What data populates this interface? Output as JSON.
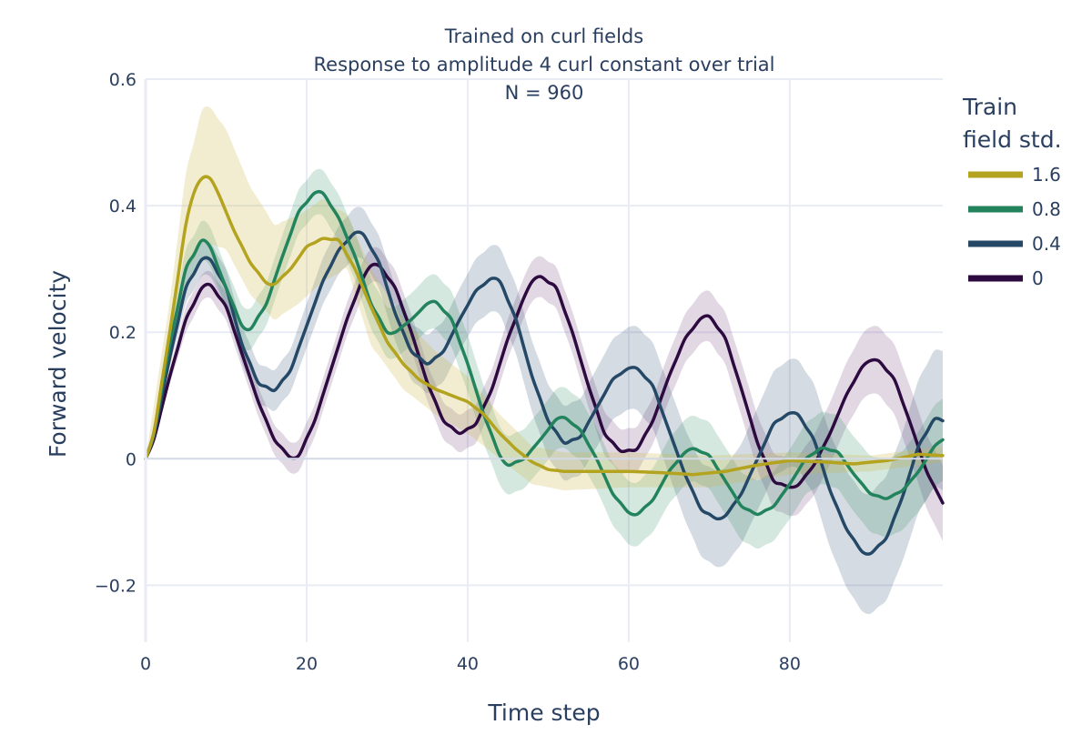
{
  "chart_data": {
    "type": "line",
    "title": "Trained on curl fields",
    "subtitle": "Response to amplitude 4 curl constant over trial",
    "annotation": "N = 960",
    "xlabel": "Time step",
    "ylabel": "Forward velocity",
    "xlim": [
      0,
      99
    ],
    "ylim": [
      -0.29,
      0.6
    ],
    "xticks": [
      0,
      20,
      40,
      60,
      80
    ],
    "xtick_labels": [
      "0",
      "20",
      "40",
      "60",
      "80"
    ],
    "yticks": [
      -0.2,
      0,
      0.2,
      0.4,
      0.6
    ],
    "ytick_labels": [
      "−0.2",
      "0",
      "0.2",
      "0.4",
      "0.6"
    ],
    "grid": true,
    "legend": {
      "title_lines": [
        "Train",
        "field std."
      ],
      "placement": "right",
      "entries": [
        "1.6",
        "0.8",
        "0.4",
        "0"
      ]
    },
    "series": [
      {
        "name": "1.6",
        "color": "#b3a31f",
        "band_color": "rgba(202,184,70,0.25)",
        "anchors": [
          [
            0,
            0
          ],
          [
            1,
            0.04
          ],
          [
            3,
            0.2
          ],
          [
            5,
            0.37
          ],
          [
            6,
            0.42
          ],
          [
            7,
            0.443
          ],
          [
            8,
            0.443
          ],
          [
            9,
            0.42
          ],
          [
            11,
            0.36
          ],
          [
            13,
            0.31
          ],
          [
            15,
            0.278
          ],
          [
            16,
            0.276
          ],
          [
            18,
            0.3
          ],
          [
            20,
            0.335
          ],
          [
            22,
            0.348
          ],
          [
            24,
            0.345
          ],
          [
            26,
            0.3
          ],
          [
            28,
            0.24
          ],
          [
            30,
            0.185
          ],
          [
            32,
            0.15
          ],
          [
            34,
            0.125
          ],
          [
            36,
            0.11
          ],
          [
            38,
            0.1
          ],
          [
            40,
            0.09
          ],
          [
            42,
            0.07
          ],
          [
            44,
            0.04
          ],
          [
            46,
            0.015
          ],
          [
            48,
            -0.005
          ],
          [
            50,
            -0.017
          ],
          [
            52,
            -0.02
          ],
          [
            56,
            -0.02
          ],
          [
            60,
            -0.02
          ],
          [
            64,
            -0.022
          ],
          [
            68,
            -0.025
          ],
          [
            72,
            -0.02
          ],
          [
            76,
            -0.01
          ],
          [
            80,
            -0.003
          ],
          [
            84,
            -0.005
          ],
          [
            88,
            -0.008
          ],
          [
            92,
            -0.003
          ],
          [
            96,
            0.007
          ],
          [
            99,
            0.005
          ]
        ],
        "band": [
          [
            0,
            0
          ],
          [
            3,
            0.25
          ],
          [
            5,
            0.45
          ],
          [
            7,
            0.55
          ],
          [
            8,
            0.555
          ],
          [
            10,
            0.52
          ],
          [
            13,
            0.43
          ],
          [
            16,
            0.37
          ],
          [
            19,
            0.385
          ],
          [
            22,
            0.41
          ],
          [
            25,
            0.385
          ],
          [
            28,
            0.3
          ],
          [
            32,
            0.22
          ],
          [
            36,
            0.17
          ],
          [
            40,
            0.13
          ],
          [
            44,
            0.07
          ],
          [
            48,
            0.02
          ],
          [
            52,
            0.01
          ],
          [
            60,
            0.01
          ],
          [
            70,
            0.005
          ],
          [
            80,
            0.01
          ],
          [
            90,
            0.005
          ],
          [
            99,
            0.02
          ]
        ],
        "band_lower": [
          [
            0,
            0
          ],
          [
            3,
            0.14
          ],
          [
            5,
            0.29
          ],
          [
            7,
            0.34
          ],
          [
            8,
            0.34
          ],
          [
            10,
            0.33
          ],
          [
            13,
            0.26
          ],
          [
            16,
            0.22
          ],
          [
            19,
            0.245
          ],
          [
            22,
            0.28
          ],
          [
            25,
            0.3
          ],
          [
            28,
            0.18
          ],
          [
            32,
            0.11
          ],
          [
            36,
            0.07
          ],
          [
            40,
            0.04
          ],
          [
            44,
            0.0
          ],
          [
            48,
            -0.04
          ],
          [
            52,
            -0.05
          ],
          [
            60,
            -0.045
          ],
          [
            70,
            -0.045
          ],
          [
            80,
            -0.025
          ],
          [
            90,
            -0.02
          ],
          [
            99,
            -0.005
          ]
        ]
      },
      {
        "name": "0.8",
        "color": "#23835d",
        "band_color": "rgba(42,140,96,0.2)",
        "anchors": [
          [
            0,
            0
          ],
          [
            1,
            0.04
          ],
          [
            3,
            0.18
          ],
          [
            5,
            0.3
          ],
          [
            7,
            0.345
          ],
          [
            8,
            0.335
          ],
          [
            10,
            0.27
          ],
          [
            12,
            0.21
          ],
          [
            13,
            0.205
          ],
          [
            15,
            0.245
          ],
          [
            17,
            0.32
          ],
          [
            19,
            0.39
          ],
          [
            21,
            0.42
          ],
          [
            22,
            0.42
          ],
          [
            24,
            0.38
          ],
          [
            26,
            0.32
          ],
          [
            28,
            0.245
          ],
          [
            30,
            0.2
          ],
          [
            31,
            0.2
          ],
          [
            33,
            0.22
          ],
          [
            35,
            0.245
          ],
          [
            36,
            0.248
          ],
          [
            38,
            0.22
          ],
          [
            40,
            0.15
          ],
          [
            42,
            0.07
          ],
          [
            44,
            0.005
          ],
          [
            45,
            -0.01
          ],
          [
            47,
            0.0
          ],
          [
            49,
            0.03
          ],
          [
            51,
            0.062
          ],
          [
            52,
            0.065
          ],
          [
            54,
            0.045
          ],
          [
            56,
            0.0
          ],
          [
            58,
            -0.055
          ],
          [
            60,
            -0.085
          ],
          [
            61,
            -0.088
          ],
          [
            63,
            -0.065
          ],
          [
            65,
            -0.02
          ],
          [
            67,
            0.01
          ],
          [
            68,
            0.016
          ],
          [
            70,
            0.005
          ],
          [
            72,
            -0.035
          ],
          [
            74,
            -0.075
          ],
          [
            76,
            -0.088
          ],
          [
            78,
            -0.075
          ],
          [
            80,
            -0.04
          ],
          [
            82,
            0.0
          ],
          [
            84,
            0.017
          ],
          [
            86,
            0.01
          ],
          [
            88,
            -0.025
          ],
          [
            90,
            -0.055
          ],
          [
            92,
            -0.063
          ],
          [
            94,
            -0.05
          ],
          [
            96,
            -0.02
          ],
          [
            98,
            0.02
          ],
          [
            99,
            0.03
          ]
        ],
        "band_halfwidth": [
          [
            0,
            0
          ],
          [
            5,
            0.03
          ],
          [
            20,
            0.035
          ],
          [
            40,
            0.045
          ],
          [
            60,
            0.05
          ],
          [
            80,
            0.055
          ],
          [
            99,
            0.065
          ]
        ]
      },
      {
        "name": "0.4",
        "color": "#244866",
        "band_color": "rgba(46,74,110,0.2)",
        "anchors": [
          [
            0,
            0
          ],
          [
            1,
            0.035
          ],
          [
            3,
            0.16
          ],
          [
            5,
            0.27
          ],
          [
            7,
            0.315
          ],
          [
            8,
            0.315
          ],
          [
            10,
            0.27
          ],
          [
            12,
            0.18
          ],
          [
            14,
            0.12
          ],
          [
            16,
            0.108
          ],
          [
            18,
            0.14
          ],
          [
            20,
            0.21
          ],
          [
            22,
            0.28
          ],
          [
            24,
            0.33
          ],
          [
            26,
            0.357
          ],
          [
            27,
            0.355
          ],
          [
            29,
            0.31
          ],
          [
            31,
            0.23
          ],
          [
            33,
            0.17
          ],
          [
            35,
            0.15
          ],
          [
            37,
            0.17
          ],
          [
            39,
            0.22
          ],
          [
            41,
            0.265
          ],
          [
            43,
            0.285
          ],
          [
            44,
            0.28
          ],
          [
            46,
            0.22
          ],
          [
            48,
            0.13
          ],
          [
            50,
            0.06
          ],
          [
            52,
            0.025
          ],
          [
            54,
            0.035
          ],
          [
            56,
            0.08
          ],
          [
            58,
            0.125
          ],
          [
            60,
            0.143
          ],
          [
            61,
            0.143
          ],
          [
            63,
            0.115
          ],
          [
            65,
            0.045
          ],
          [
            67,
            -0.025
          ],
          [
            69,
            -0.08
          ],
          [
            71,
            -0.095
          ],
          [
            72,
            -0.09
          ],
          [
            74,
            -0.055
          ],
          [
            76,
            0.0
          ],
          [
            78,
            0.055
          ],
          [
            80,
            0.072
          ],
          [
            81,
            0.07
          ],
          [
            83,
            0.03
          ],
          [
            85,
            -0.05
          ],
          [
            87,
            -0.11
          ],
          [
            89,
            -0.147
          ],
          [
            90,
            -0.15
          ],
          [
            92,
            -0.125
          ],
          [
            94,
            -0.06
          ],
          [
            96,
            0.02
          ],
          [
            98,
            0.063
          ],
          [
            99,
            0.06
          ]
        ],
        "band_halfwidth": [
          [
            0,
            0
          ],
          [
            5,
            0.025
          ],
          [
            20,
            0.035
          ],
          [
            40,
            0.05
          ],
          [
            60,
            0.065
          ],
          [
            80,
            0.085
          ],
          [
            90,
            0.095
          ],
          [
            99,
            0.11
          ]
        ]
      },
      {
        "name": "0",
        "color": "#2d0a3f",
        "band_color": "rgba(104,60,120,0.2)",
        "anchors": [
          [
            0,
            0
          ],
          [
            1,
            0.03
          ],
          [
            3,
            0.13
          ],
          [
            5,
            0.22
          ],
          [
            7,
            0.27
          ],
          [
            8,
            0.275
          ],
          [
            10,
            0.24
          ],
          [
            12,
            0.165
          ],
          [
            14,
            0.09
          ],
          [
            16,
            0.03
          ],
          [
            18,
            0.002
          ],
          [
            19,
            0.005
          ],
          [
            21,
            0.06
          ],
          [
            23,
            0.14
          ],
          [
            25,
            0.22
          ],
          [
            27,
            0.285
          ],
          [
            28,
            0.305
          ],
          [
            29,
            0.305
          ],
          [
            31,
            0.27
          ],
          [
            33,
            0.2
          ],
          [
            35,
            0.12
          ],
          [
            37,
            0.06
          ],
          [
            39,
            0.04
          ],
          [
            41,
            0.055
          ],
          [
            43,
            0.11
          ],
          [
            45,
            0.19
          ],
          [
            47,
            0.255
          ],
          [
            48,
            0.28
          ],
          [
            49,
            0.288
          ],
          [
            51,
            0.27
          ],
          [
            53,
            0.2
          ],
          [
            55,
            0.115
          ],
          [
            57,
            0.04
          ],
          [
            59,
            0.012
          ],
          [
            61,
            0.015
          ],
          [
            63,
            0.06
          ],
          [
            65,
            0.13
          ],
          [
            67,
            0.19
          ],
          [
            69,
            0.222
          ],
          [
            70,
            0.225
          ],
          [
            72,
            0.19
          ],
          [
            74,
            0.11
          ],
          [
            76,
            0.025
          ],
          [
            78,
            -0.035
          ],
          [
            80,
            -0.045
          ],
          [
            81,
            -0.042
          ],
          [
            83,
            -0.01
          ],
          [
            85,
            0.04
          ],
          [
            87,
            0.1
          ],
          [
            89,
            0.145
          ],
          [
            90,
            0.155
          ],
          [
            91,
            0.155
          ],
          [
            93,
            0.125
          ],
          [
            95,
            0.055
          ],
          [
            97,
            -0.02
          ],
          [
            99,
            -0.07
          ]
        ],
        "band_halfwidth": [
          [
            0,
            0
          ],
          [
            5,
            0.02
          ],
          [
            20,
            0.025
          ],
          [
            40,
            0.03
          ],
          [
            60,
            0.035
          ],
          [
            80,
            0.045
          ],
          [
            99,
            0.06
          ]
        ]
      }
    ]
  }
}
